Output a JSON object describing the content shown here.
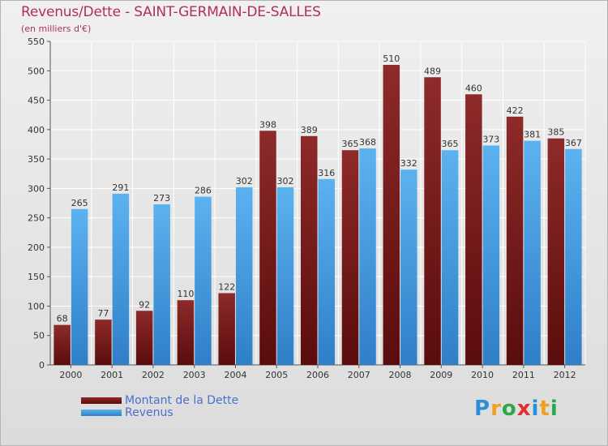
{
  "title": "Revenus/Dette - SAINT-GERMAIN-DE-SALLES",
  "subtitle": "(en milliers d'€)",
  "logo": {
    "text": "Proxiti",
    "letters": [
      {
        "ch": "P",
        "color": "#2b8fd8"
      },
      {
        "ch": "r",
        "color": "#f0a020"
      },
      {
        "ch": "o",
        "color": "#2ba84a"
      },
      {
        "ch": "x",
        "color": "#e03030"
      },
      {
        "ch": "i",
        "color": "#2b8fd8"
      },
      {
        "ch": "t",
        "color": "#f0a020"
      },
      {
        "ch": "i",
        "color": "#2ba84a"
      }
    ]
  },
  "chart_data": {
    "type": "bar",
    "categories": [
      "2000",
      "2001",
      "2002",
      "2003",
      "2004",
      "2005",
      "2006",
      "2007",
      "2008",
      "2009",
      "2010",
      "2011",
      "2012"
    ],
    "series": [
      {
        "name": "Montant de la Dette",
        "color": "#7a1a1a",
        "values": [
          68,
          77,
          92,
          110,
          122,
          398,
          389,
          365,
          510,
          489,
          460,
          422,
          385
        ]
      },
      {
        "name": "Revenus",
        "color": "#4aa3e8",
        "values": [
          265,
          291,
          273,
          286,
          302,
          302,
          316,
          368,
          332,
          365,
          373,
          381,
          367
        ]
      }
    ],
    "ylim": [
      0,
      550
    ],
    "yticks": [
      0,
      50,
      100,
      150,
      200,
      250,
      300,
      350,
      400,
      450,
      500,
      550
    ],
    "grid": true,
    "legend": "bottom-left"
  }
}
